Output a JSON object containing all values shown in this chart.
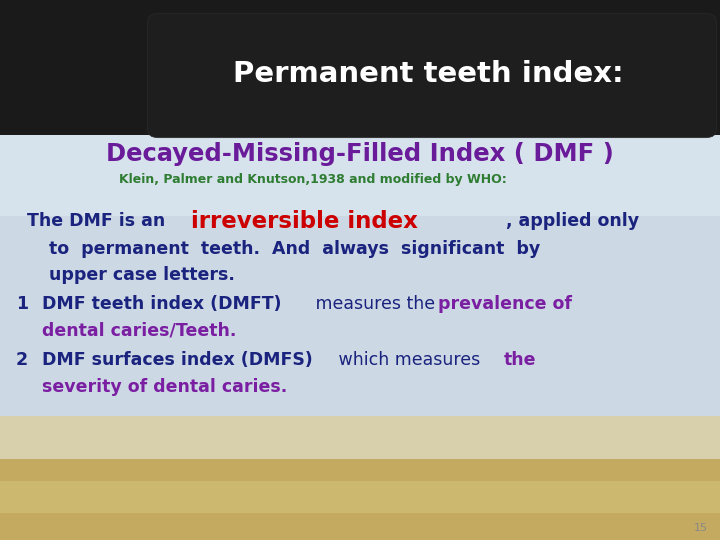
{
  "title": "Permanent teeth index:",
  "title_color": "#ffffff",
  "subtitle": "Decayed-Missing-Filled Index ( DMF )",
  "subtitle_color": "#6a1b9a",
  "sub_subtitle": "Klein, Palmer and Knutson,1938 and modified by WHO:",
  "sub_subtitle_color": "#2e7d32",
  "body_color": "#1a237e",
  "red_color": "#cc0000",
  "purple_color": "#7b1fa2",
  "page_number": "15",
  "bg_dark": "#1a1a1a",
  "bg_sky": "#d8e8f0",
  "bg_grass_top": "#e8dfc0",
  "bg_grass_bot": "#c8b060"
}
